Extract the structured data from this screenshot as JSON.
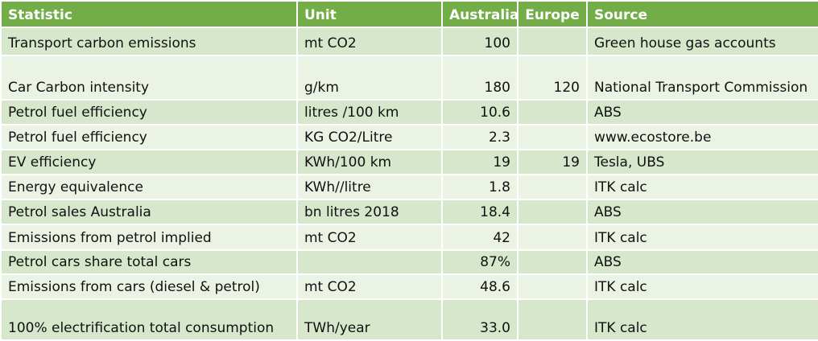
{
  "table": {
    "header": [
      "Statistic",
      "Unit",
      "Australia",
      "Europe",
      "Source"
    ],
    "rows": [
      [
        "Transport carbon emissions",
        "mt CO2",
        "100",
        null,
        "Green house gas accounts"
      ],
      [
        "Car Carbon intensity",
        "g/km",
        "180",
        "120",
        "National Transport Commission"
      ],
      [
        "Petrol fuel efficiency",
        "litres /100 km",
        "10.6",
        null,
        "ABS"
      ],
      [
        "Petrol fuel efficiency",
        "KG CO2/Litre",
        "2.3",
        null,
        "www.ecostore.be"
      ],
      [
        "EV efficiency",
        "KWh/100 km",
        "19",
        "19",
        "Tesla, UBS"
      ],
      [
        "Energy equivalence",
        "KWh//litre",
        "1.8",
        null,
        "ITK calc"
      ],
      [
        "Petrol sales Australia",
        "bn litres 2018",
        "18.4",
        null,
        "ABS"
      ],
      [
        "Emissions from petrol implied",
        "mt CO2",
        "42",
        null,
        "ITK calc"
      ],
      [
        "Petrol cars share total cars",
        null,
        "87%",
        null,
        "ABS"
      ],
      [
        "Emissions from cars (diesel & petrol)",
        "mt CO2",
        "48.6",
        null,
        "ITK calc"
      ],
      [
        "100% electrification total consumption",
        "TWh/year",
        "33.0",
        null,
        "ITK calc"
      ]
    ]
  }
}
